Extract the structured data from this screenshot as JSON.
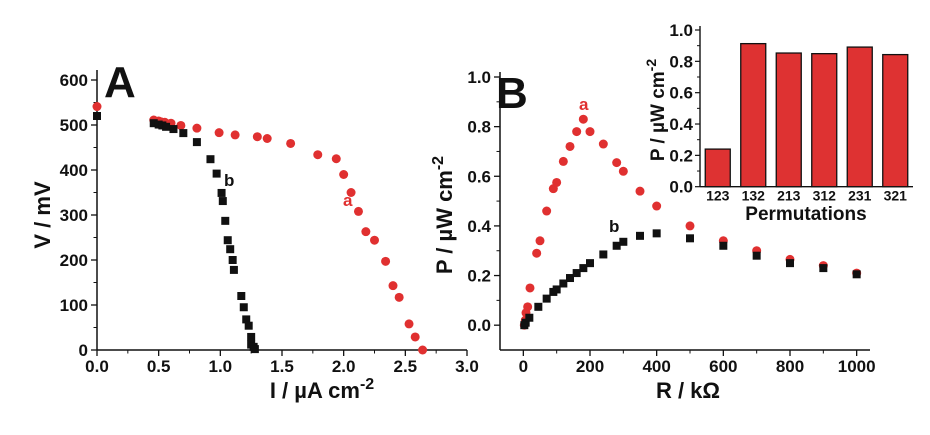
{
  "colors": {
    "series_a": "#e03030",
    "series_b": "#111111",
    "bar_fill": "#de3232",
    "axis": "#111111"
  },
  "chart_data": [
    {
      "panel": "A",
      "type": "scatter",
      "xlabel": "I / µA cm",
      "xlabel_sup": "-2",
      "ylabel": "V / mV",
      "xlim": [
        0,
        3.0
      ],
      "ylim": [
        0,
        600
      ],
      "xticks": [
        "0.0",
        "0.5",
        "1.0",
        "1.5",
        "2.0",
        "2.5",
        "3.0"
      ],
      "yticks": [
        "0",
        "100",
        "200",
        "300",
        "400",
        "500",
        "600"
      ],
      "grid": false,
      "series": [
        {
          "name": "a",
          "marker": "circle",
          "color": "#e03030",
          "x": [
            0,
            0.46,
            0.5,
            0.52,
            0.55,
            0.6,
            0.68,
            0.81,
            0.99,
            1.12,
            1.3,
            1.38,
            1.57,
            1.79,
            1.94,
            2.0,
            2.06,
            2.12,
            2.18,
            2.25,
            2.34,
            2.4,
            2.45,
            2.53,
            2.58,
            2.64
          ],
          "y": [
            541,
            511,
            509,
            507,
            506,
            504,
            499,
            493,
            483,
            478,
            474,
            470,
            459,
            434,
            425,
            390,
            350,
            308,
            263,
            244,
            197,
            143,
            117,
            58,
            29,
            0
          ]
        },
        {
          "name": "b",
          "marker": "square",
          "color": "#111111",
          "x": [
            0,
            0.46,
            0.5,
            0.53,
            0.56,
            0.62,
            0.7,
            0.81,
            0.92,
            0.97,
            1.01,
            1.02,
            1.04,
            1.06,
            1.08,
            1.1,
            1.11,
            1.17,
            1.19,
            1.21,
            1.23,
            1.25,
            1.25,
            1.27,
            1.28
          ],
          "y": [
            520,
            504,
            501,
            499,
            496,
            491,
            482,
            462,
            424,
            392,
            349,
            331,
            287,
            244,
            224,
            200,
            178,
            120,
            95,
            68,
            54,
            29,
            12,
            7,
            2
          ]
        }
      ]
    },
    {
      "panel": "B",
      "type": "scatter",
      "xlabel": "R / kΩ",
      "ylabel": "P / µW cm",
      "ylabel_sup": "-2",
      "xlim": [
        -70,
        1040
      ],
      "ylim": [
        -0.1,
        1.0
      ],
      "xticks": [
        "0",
        "200",
        "400",
        "600",
        "800",
        "1000"
      ],
      "yticks": [
        "0.0",
        "0.2",
        "0.4",
        "0.6",
        "0.8",
        "1.0"
      ],
      "grid": false,
      "series": [
        {
          "name": "a",
          "marker": "circle",
          "color": "#e03030",
          "x": [
            3,
            6,
            8,
            13,
            20,
            40,
            50,
            70,
            90,
            100,
            120,
            140,
            160,
            180,
            200,
            240,
            280,
            300,
            350,
            400,
            500,
            600,
            700,
            800,
            900,
            1000
          ],
          "y": [
            0.0,
            0.02,
            0.05,
            0.074,
            0.15,
            0.29,
            0.34,
            0.46,
            0.55,
            0.575,
            0.66,
            0.72,
            0.78,
            0.83,
            0.78,
            0.73,
            0.655,
            0.62,
            0.54,
            0.48,
            0.4,
            0.34,
            0.3,
            0.265,
            0.24,
            0.21
          ]
        },
        {
          "name": "b",
          "marker": "square",
          "color": "#111111",
          "x": [
            3,
            7,
            18,
            45,
            70,
            90,
            100,
            120,
            140,
            160,
            180,
            200,
            240,
            280,
            300,
            350,
            400,
            500,
            600,
            700,
            800,
            900,
            1000
          ],
          "y": [
            0.0,
            0.01,
            0.03,
            0.074,
            0.107,
            0.134,
            0.144,
            0.168,
            0.19,
            0.21,
            0.23,
            0.25,
            0.285,
            0.32,
            0.336,
            0.36,
            0.37,
            0.35,
            0.32,
            0.28,
            0.25,
            0.23,
            0.205
          ]
        }
      ]
    },
    {
      "panel": "inset",
      "type": "bar",
      "xlabel": "Permutations",
      "ylabel": "P / µW cm",
      "ylabel_sup": "-2",
      "ylim": [
        0,
        1.0
      ],
      "yticks": [
        "0.0",
        "0.2",
        "0.4",
        "0.6",
        "0.8",
        "1.0"
      ],
      "categories": [
        "123",
        "132",
        "213",
        "312",
        "231",
        "321"
      ],
      "values": [
        0.24,
        0.913,
        0.853,
        0.849,
        0.891,
        0.843
      ]
    }
  ]
}
